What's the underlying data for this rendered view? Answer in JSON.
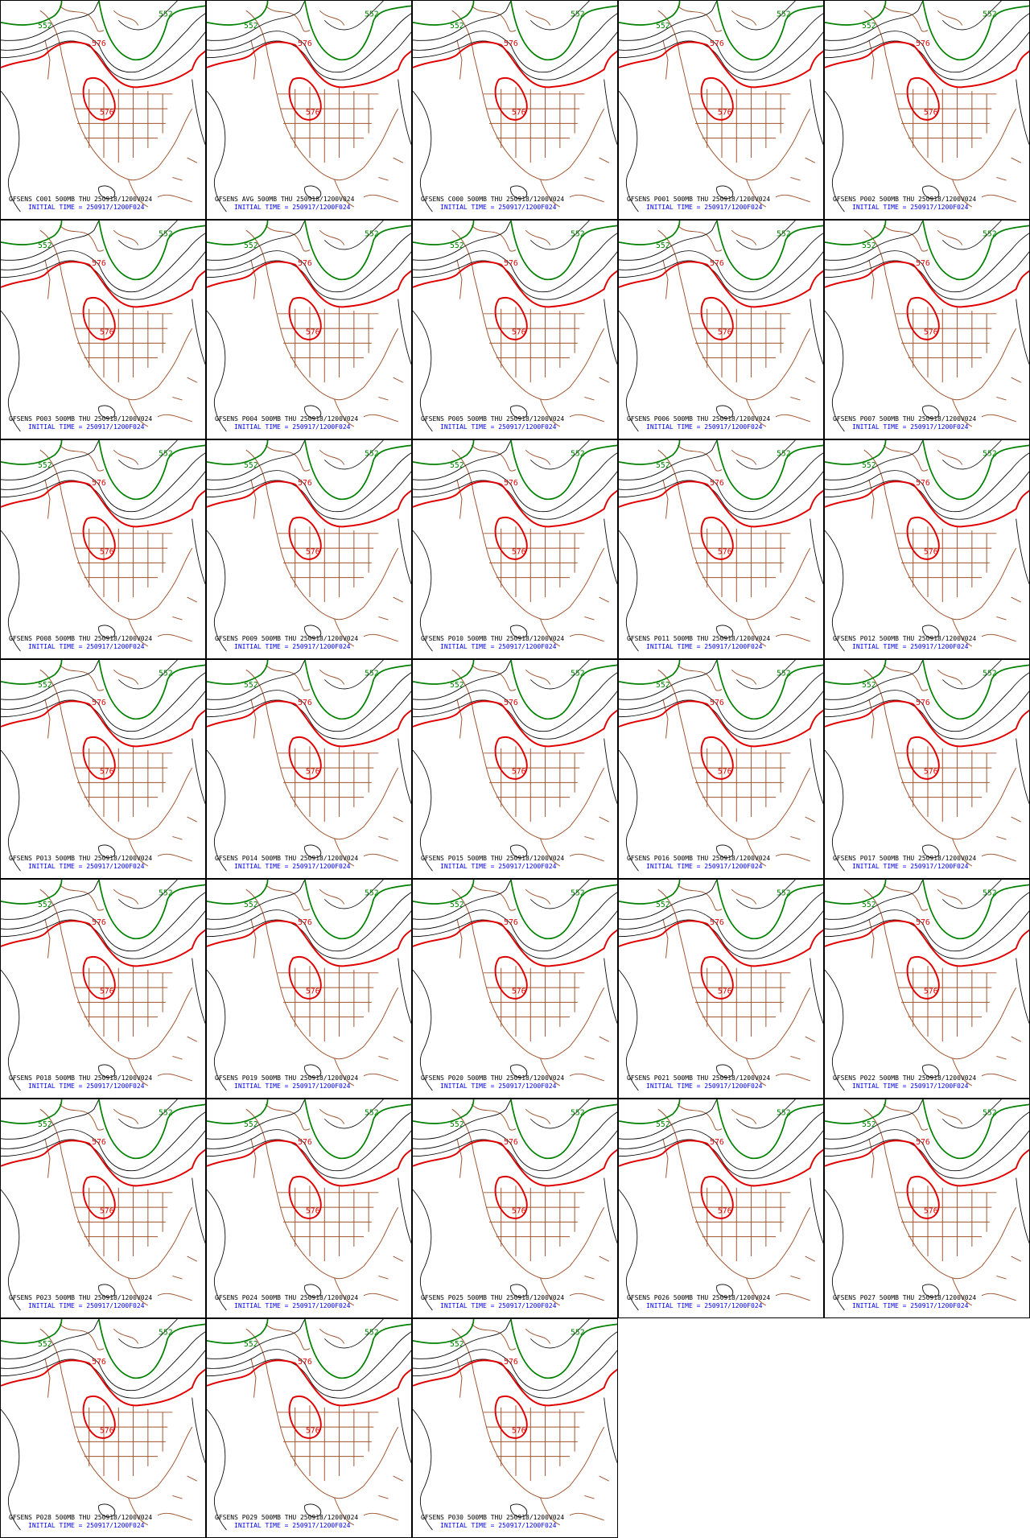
{
  "panels": [
    {
      "title": "GFSENS C001 500MB THU 250918/1200V024",
      "init": "INITIAL TIME = 250917/1200F024",
      "contour_labels": [
        "552",
        "552",
        "576",
        "576"
      ]
    },
    {
      "title": "GFSENS AVG 500MB THU 250918/1200V024",
      "init": "INITIAL TIME = 250917/1200F024",
      "contour_labels": [
        "552",
        "552",
        "576",
        "576"
      ]
    },
    {
      "title": "GFSENS C000 500MB THU 250918/1200V024",
      "init": "INITIAL TIME = 250917/1200F024",
      "contour_labels": [
        "552",
        "552",
        "576",
        "576"
      ]
    },
    {
      "title": "GFSENS P001 500MB THU 250918/1200V024",
      "init": "INITIAL TIME = 250917/1200F024",
      "contour_labels": [
        "552",
        "552",
        "576",
        "576"
      ]
    },
    {
      "title": "GFSENS P002 500MB THU 250918/1200V024",
      "init": "INITIAL TIME = 250917/1200F024",
      "contour_labels": [
        "552",
        "552",
        "576",
        "576"
      ]
    },
    {
      "title": "GFSENS P003 500MB THU 250918/1200V024",
      "init": "INITIAL TIME = 250917/1200F024",
      "contour_labels": [
        "552",
        "552",
        "576",
        "576"
      ]
    },
    {
      "title": "GFSENS P004 500MB THU 250918/1200V024",
      "init": "INITIAL TIME = 250917/1200F024",
      "contour_labels": [
        "552",
        "552",
        "576",
        "576"
      ]
    },
    {
      "title": "GFSENS P005 500MB THU 250918/1200V024",
      "init": "INITIAL TIME = 250917/1200F024",
      "contour_labels": [
        "552",
        "552",
        "576",
        "576"
      ]
    },
    {
      "title": "GFSENS P006 500MB THU 250918/1200V024",
      "init": "INITIAL TIME = 250917/1200F024",
      "contour_labels": [
        "552",
        "552",
        "576",
        "576"
      ]
    },
    {
      "title": "GFSENS P007 500MB THU 250918/1200V024",
      "init": "INITIAL TIME = 250917/1200F024",
      "contour_labels": [
        "552",
        "552",
        "576",
        "576"
      ]
    },
    {
      "title": "GFSENS P008 500MB THU 250918/1200V024",
      "init": "INITIAL TIME = 250917/1200F024",
      "contour_labels": [
        "552",
        "552",
        "576",
        "576"
      ]
    },
    {
      "title": "GFSENS P009 500MB THU 250918/1200V024",
      "init": "INITIAL TIME = 250917/1200F024",
      "contour_labels": [
        "552",
        "552",
        "576",
        "576"
      ]
    },
    {
      "title": "GFSENS P010 500MB THU 250918/1200V024",
      "init": "INITIAL TIME = 250917/1200F024",
      "contour_labels": [
        "552",
        "552",
        "576",
        "576"
      ]
    },
    {
      "title": "GFSENS P011 500MB THU 250918/1200V024",
      "init": "INITIAL TIME = 250917/1200F024",
      "contour_labels": [
        "552",
        "552",
        "576",
        "576"
      ]
    },
    {
      "title": "GFSENS P012 500MB THU 250918/1200V024",
      "init": "INITIAL TIME = 250917/1200F024",
      "contour_labels": [
        "552",
        "552",
        "576",
        "576"
      ]
    },
    {
      "title": "GFSENS P013 500MB THU 250918/1200V024",
      "init": "INITIAL TIME = 250917/1200F024",
      "contour_labels": [
        "552",
        "552",
        "576",
        "576"
      ]
    },
    {
      "title": "GFSENS P014 500MB THU 250918/1200V024",
      "init": "INITIAL TIME = 250917/1200F024",
      "contour_labels": [
        "552",
        "552",
        "576",
        "576"
      ]
    },
    {
      "title": "GFSENS P015 500MB THU 250918/1200V024",
      "init": "INITIAL TIME = 250917/1200F024",
      "contour_labels": [
        "552",
        "552",
        "576",
        "576"
      ]
    },
    {
      "title": "GFSENS P016 500MB THU 250918/1200V024",
      "init": "INITIAL TIME = 250917/1200F024",
      "contour_labels": [
        "552",
        "552",
        "576",
        "576"
      ]
    },
    {
      "title": "GFSENS P017 500MB THU 250918/1200V024",
      "init": "INITIAL TIME = 250917/1200F024",
      "contour_labels": [
        "552",
        "552",
        "576",
        "576"
      ]
    },
    {
      "title": "GFSENS P018 500MB THU 250918/1200V024",
      "init": "INITIAL TIME = 250917/1200F024",
      "contour_labels": [
        "552",
        "552",
        "576",
        "576"
      ]
    },
    {
      "title": "GFSENS P019 500MB THU 250918/1200V024",
      "init": "INITIAL TIME = 250917/1200F024",
      "contour_labels": [
        "552",
        "552",
        "576",
        "576"
      ]
    },
    {
      "title": "GFSENS P020 500MB THU 250918/1200V024",
      "init": "INITIAL TIME = 250917/1200F024",
      "contour_labels": [
        "552",
        "552",
        "576",
        "576"
      ]
    },
    {
      "title": "GFSENS P021 500MB THU 250918/1200V024",
      "init": "INITIAL TIME = 250917/1200F024",
      "contour_labels": [
        "552",
        "552",
        "576",
        "576"
      ]
    },
    {
      "title": "GFSENS P022 500MB THU 250918/1200V024",
      "init": "INITIAL TIME = 250917/1200F024",
      "contour_labels": [
        "552",
        "552",
        "576",
        "576"
      ]
    },
    {
      "title": "GFSENS P023 500MB THU 250918/1200V024",
      "init": "INITIAL TIME = 250917/1200F024",
      "contour_labels": [
        "552",
        "552",
        "576",
        "576"
      ]
    },
    {
      "title": "GFSENS P024 500MB THU 250918/1200V024",
      "init": "INITIAL TIME = 250917/1200F024",
      "contour_labels": [
        "552",
        "552",
        "576",
        "576"
      ]
    },
    {
      "title": "GFSENS P025 500MB THU 250918/1200V024",
      "init": "INITIAL TIME = 250917/1200F024",
      "contour_labels": [
        "552",
        "552",
        "576",
        "576"
      ]
    },
    {
      "title": "GFSENS P026 500MB THU 250918/1200V024",
      "init": "INITIAL TIME = 250917/1200F024",
      "contour_labels": [
        "552",
        "552",
        "576",
        "576"
      ]
    },
    {
      "title": "GFSENS P027 500MB THU 250918/1200V024",
      "init": "INITIAL TIME = 250917/1200F024",
      "contour_labels": [
        "552",
        "552",
        "576",
        "576"
      ]
    },
    {
      "title": "GFSENS P028 500MB THU 250918/1200V024",
      "init": "INITIAL TIME = 250917/1200F024",
      "contour_labels": [
        "552",
        "552",
        "576",
        "576"
      ]
    },
    {
      "title": "GFSENS P029 500MB THU 250918/1200V024",
      "init": "INITIAL TIME = 250917/1200F024",
      "contour_labels": [
        "552",
        "552",
        "576",
        "576"
      ]
    },
    {
      "title": "GFSENS P030 500MB THU 250918/1200V024",
      "init": "INITIAL TIME = 250917/1200F024",
      "contour_labels": [
        "552",
        "552",
        "576",
        "576"
      ]
    }
  ]
}
